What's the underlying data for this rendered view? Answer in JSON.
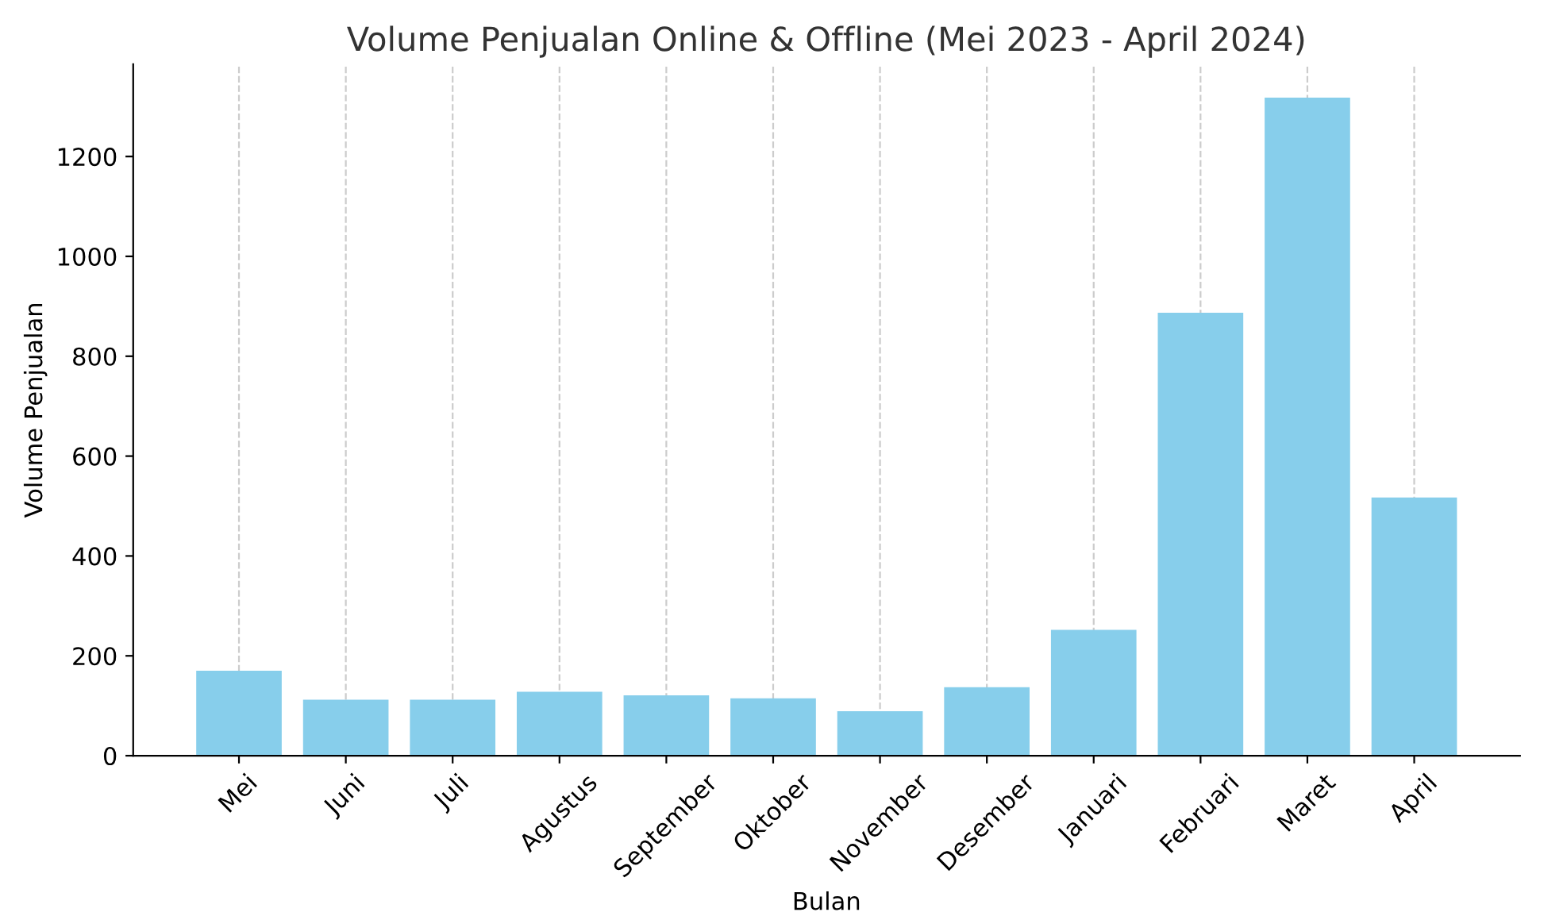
{
  "chart_data": {
    "type": "bar",
    "title": "Volume Penjualan Online & Offline (Mei 2023 - April 2024)",
    "xlabel": "Bulan",
    "ylabel": "Volume Penjualan",
    "categories": [
      "Mei",
      "Juni",
      "Juli",
      "Agustus",
      "September",
      "Oktober",
      "November",
      "Desember",
      "Januari",
      "Februari",
      "Maret",
      "April"
    ],
    "values": [
      170,
      112,
      112,
      128,
      121,
      115,
      89,
      137,
      252,
      887,
      1318,
      517
    ],
    "color": "#87ceeb",
    "ylim": [
      0,
      1385
    ],
    "yticks": [
      0,
      200,
      400,
      600,
      800,
      1000,
      1200
    ],
    "grid": "x"
  }
}
